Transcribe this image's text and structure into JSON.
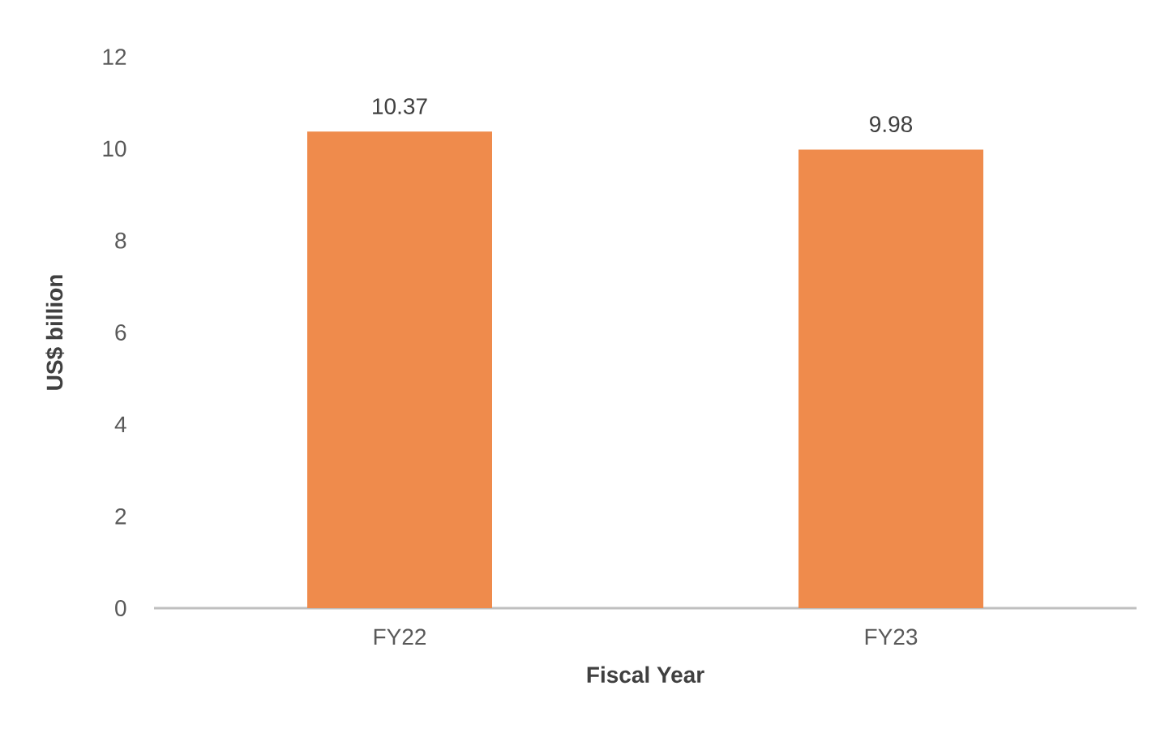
{
  "chart_data": {
    "type": "bar",
    "xlabel": "Fiscal Year",
    "ylabel": "US$ billion",
    "categories": [
      "FY22",
      "FY23"
    ],
    "values": [
      10.37,
      9.98
    ],
    "color": "#ef8b4c",
    "ylim": [
      0,
      12
    ],
    "yticks": [
      0,
      2,
      4,
      6,
      8,
      10,
      12
    ],
    "data_labels": true
  }
}
